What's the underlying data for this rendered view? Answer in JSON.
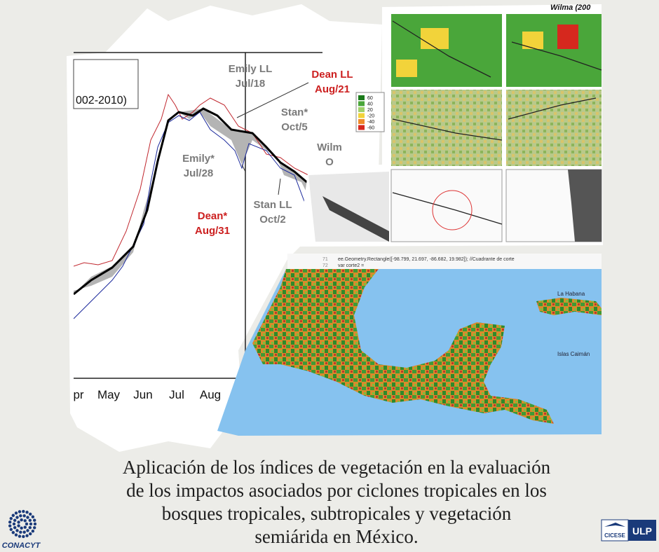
{
  "chart_panel": {
    "legend_fragment": "002-2010)",
    "months": [
      "pr",
      "May",
      "Jun",
      "Jul",
      "Aug"
    ],
    "annotations": [
      {
        "lines": [
          "Emily LL",
          "Jul/18"
        ]
      },
      {
        "lines": [
          "Dean LL",
          "Aug/21"
        ]
      },
      {
        "lines": [
          "Stan*",
          "Oct/5"
        ]
      },
      {
        "lines": [
          "Emily*",
          "Jul/28"
        ]
      },
      {
        "lines": [
          "Dean*",
          "Aug/31"
        ]
      },
      {
        "lines": [
          "Stan LL",
          "Oct/2"
        ]
      },
      {
        "lines": [
          "Wilm",
          "O"
        ]
      }
    ]
  },
  "map_panel": {
    "title": "Wilma (200",
    "legend": [
      "60",
      "40",
      "20",
      "-20",
      "-40",
      "-60"
    ]
  },
  "code_strip": {
    "lines": [
      {
        "number": "71",
        "code": "ee.Geometry.Rectangle([-98.799, 21.697, -86.682, 19.982]); //Cuadrante de corte"
      },
      {
        "number": "72",
        "code": "var corte2 ="
      }
    ]
  },
  "region_map": {
    "labels": [
      "La Habana",
      "Islas Caimán"
    ]
  },
  "caption": {
    "lines": [
      "Aplicación de los índices de vegetación en la evaluación",
      "de los impactos asociados por ciclones tropicales en los",
      "bosques tropicales, subtropicales y vegetación",
      "semiárida en México."
    ]
  },
  "logos": {
    "left": "CONACYT",
    "right": [
      "CICESE",
      "ULP"
    ]
  }
}
